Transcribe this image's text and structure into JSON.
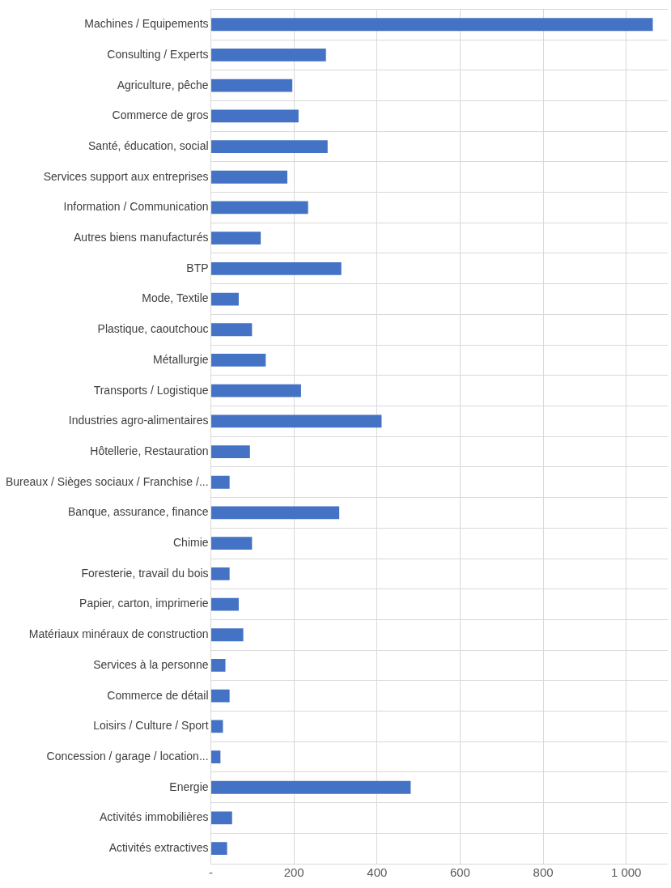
{
  "chart_data": {
    "type": "bar",
    "orientation": "horizontal",
    "color": "#4472c4",
    "grid": true,
    "categories": [
      "Machines / Equipements",
      "Consulting / Experts",
      "Agriculture, pêche",
      "Commerce de gros",
      "Santé, éducation, social",
      "Services support aux entreprises",
      "Information / Communication",
      "Autres biens manufacturés",
      "BTP",
      "Mode, Textile",
      "Plastique, caoutchouc",
      "Métallurgie",
      "Transports / Logistique",
      "Industries agro-alimentaires",
      "Hôtellerie, Restauration",
      "Bureaux / Sièges sociaux / Franchise /...",
      "Banque, assurance, finance",
      "Chimie",
      "Foresterie, travail du bois",
      "Papier, carton, imprimerie",
      "Matériaux minéraux de construction",
      "Services à la personne",
      "Commerce de détail",
      "Loisirs / Culture / Sport",
      "Concession / garage / location...",
      "Energie",
      "Activités immobilières",
      "Activités extractives"
    ],
    "values": [
      1064,
      277,
      196,
      211,
      281,
      184,
      234,
      120,
      314,
      67,
      99,
      132,
      217,
      411,
      94,
      45,
      309,
      99,
      45,
      67,
      78,
      35,
      45,
      29,
      23,
      481,
      51,
      39
    ],
    "xlim": [
      0,
      1100
    ],
    "xticks": [
      {
        "value": 0,
        "label": "-"
      },
      200,
      400,
      600,
      800,
      {
        "value": 1000,
        "label": "1 000"
      }
    ]
  }
}
